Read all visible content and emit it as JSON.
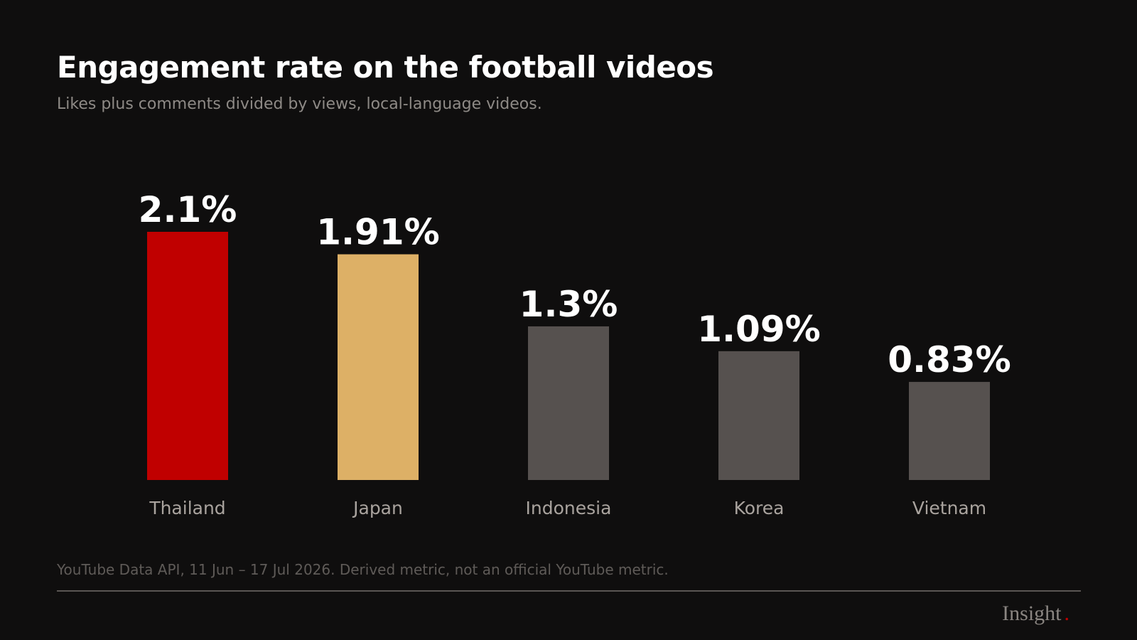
{
  "header": {
    "title": "Engagement rate on the football videos",
    "subtitle": "Likes plus comments divided by views, local-language videos."
  },
  "chart_data": {
    "type": "bar",
    "title": "Engagement rate on the football videos",
    "subtitle": "Likes plus comments divided by views, local-language videos.",
    "categories": [
      "Thailand",
      "Japan",
      "Indonesia",
      "Korea",
      "Vietnam"
    ],
    "values": [
      2.1,
      1.91,
      1.3,
      1.09,
      0.83
    ],
    "value_labels": [
      "2.1%",
      "1.91%",
      "1.3%",
      "1.09%",
      "0.83%"
    ],
    "unit": "%",
    "xlabel": "",
    "ylabel": "",
    "ylim": [
      0,
      2.1
    ],
    "grid": false,
    "legend": "none",
    "bar_colors": [
      "#c00000",
      "#ddb066",
      "#56514f",
      "#56514f",
      "#56514f"
    ]
  },
  "footer": {
    "source": "YouTube Data API, 11 Jun – 17 Jul 2026. Derived metric, not an official YouTube metric.",
    "brand": "Insight",
    "brand_dot": "."
  },
  "colors": {
    "background": "#0f0e0e",
    "title": "#ffffff",
    "subtitle": "#8e8a86",
    "category_label": "#a9a39e",
    "value_label": "#ffffff",
    "source": "#5f5b58",
    "rule": "#5a5654",
    "brand": "#8a8581",
    "brand_accent": "#c00000"
  }
}
